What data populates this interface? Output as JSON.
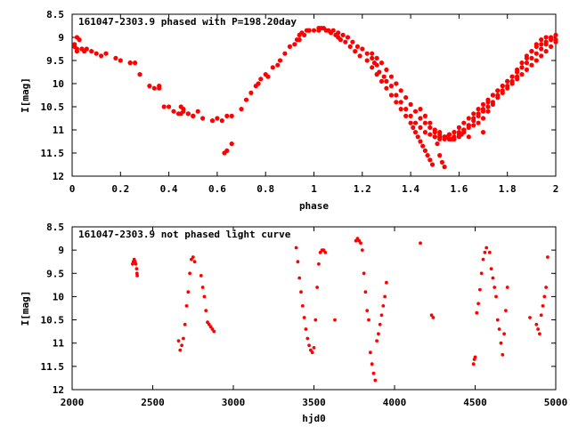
{
  "chart_data": [
    {
      "type": "scatter",
      "title": "161047-2303.9 phased with P=198.20day",
      "xlabel": "phase",
      "ylabel": "I[mag]",
      "xlim": [
        0,
        2
      ],
      "ylim": [
        8.5,
        12
      ],
      "y_inverted": true,
      "grid": false,
      "xticks": [
        "0",
        "0.2",
        "0.4",
        "0.6",
        "0.8",
        "1",
        "1.2",
        "1.4",
        "1.6",
        "1.8",
        "2"
      ],
      "yticks": [
        "8.5",
        "9",
        "9.5",
        "10",
        "10.5",
        "11",
        "11.5",
        "12"
      ],
      "color": "#ff0000",
      "series": [
        {
          "x": [
            0.01,
            0.02,
            0.02,
            0.03,
            0.04,
            0.05,
            0.06,
            0.08,
            0.1,
            0.12,
            0.14,
            0.18,
            0.2,
            0.24,
            0.26,
            0.28,
            0.32,
            0.34,
            0.36,
            0.38,
            0.42,
            0.44,
            0.45,
            0.46,
            0.48,
            0.5,
            0.52,
            0.54,
            0.58,
            0.6,
            0.62,
            0.63,
            0.64,
            0.66,
            0.7,
            0.72,
            0.74,
            0.76,
            0.77,
            0.78,
            0.8,
            0.81,
            0.83,
            0.85,
            0.86,
            0.88,
            0.9,
            0.92,
            0.93,
            0.94,
            0.95,
            0.97,
            0.98,
            1.0,
            1.02,
            1.04,
            1.06,
            1.08,
            1.1,
            1.12,
            1.14,
            1.16,
            1.18,
            1.2,
            1.22,
            1.24,
            1.25,
            1.26,
            1.27,
            1.29,
            1.3,
            1.32,
            1.34,
            1.36,
            1.38,
            1.4,
            1.42,
            1.44,
            1.46,
            1.48,
            1.5,
            1.52,
            1.54,
            1.55,
            1.56,
            1.58,
            1.6,
            1.62,
            1.64,
            1.66,
            1.68,
            1.7,
            1.72,
            1.74,
            1.76,
            1.78,
            1.8,
            1.82,
            1.84,
            1.86,
            1.88,
            1.9,
            1.92,
            1.94,
            1.96,
            1.98,
            2.0,
            1.44,
            1.46,
            1.48,
            1.5,
            1.52,
            1.54,
            1.56,
            1.58,
            1.6,
            1.62,
            1.64,
            1.66,
            1.68,
            1.7,
            1.72,
            1.74,
            1.76,
            1.78,
            1.8,
            1.82,
            1.84,
            1.86,
            1.88,
            1.9,
            1.92,
            1.94,
            1.96,
            1.98,
            1.52,
            1.54,
            1.56,
            1.58,
            1.6,
            1.62,
            1.64,
            1.66,
            1.68,
            1.7,
            1.72,
            1.74,
            1.76,
            1.78,
            1.8,
            1.82,
            1.84,
            1.86,
            1.88,
            1.9,
            1.92,
            1.94,
            1.96,
            1.98,
            2.0,
            1.24,
            1.26,
            1.28,
            1.3,
            1.32,
            1.34,
            1.36,
            1.38,
            1.4,
            1.42,
            1.44,
            1.46,
            1.48,
            1.5,
            1.52,
            1.54,
            1.56,
            1.58,
            1.6,
            1.62,
            1.64,
            1.66,
            1.68,
            1.7,
            1.72,
            1.74,
            1.76,
            1.78,
            1.8,
            1.82,
            1.84,
            1.86,
            1.88,
            1.9,
            1.92,
            1.94,
            1.96,
            1.98,
            2.0,
            0.01,
            0.02,
            0.04,
            0.24,
            0.36,
            0.4,
            0.45,
            0.46,
            0.48,
            0.5,
            0.64,
            0.66,
            0.94,
            0.96,
            0.98,
            1.02,
            1.03,
            1.05,
            1.07,
            1.09,
            1.1,
            1.11,
            1.13,
            1.15,
            1.17,
            1.19,
            1.22,
            1.24,
            1.26,
            1.28,
            1.3,
            1.32,
            1.34,
            1.36,
            1.38,
            1.4,
            1.41,
            1.42,
            1.43,
            1.44,
            1.45,
            1.46,
            1.47,
            1.48,
            1.49,
            1.5,
            1.51,
            1.52,
            1.53,
            1.54,
            1.57,
            1.61,
            1.64,
            1.7
          ],
          "y": [
            9.15,
            9.25,
            9.0,
            9.05,
            9.25,
            9.3,
            9.25,
            9.3,
            9.35,
            9.4,
            9.35,
            9.45,
            9.5,
            9.55,
            9.55,
            9.8,
            10.05,
            10.1,
            10.1,
            10.5,
            10.6,
            10.65,
            10.5,
            10.55,
            10.65,
            10.7,
            10.6,
            10.75,
            10.8,
            10.75,
            10.8,
            11.5,
            11.45,
            11.3,
            10.55,
            10.35,
            10.2,
            10.05,
            10.0,
            9.9,
            9.8,
            9.85,
            9.65,
            9.6,
            9.5,
            9.35,
            9.2,
            9.15,
            9.05,
            8.95,
            8.9,
            8.85,
            8.85,
            8.85,
            8.85,
            8.8,
            8.85,
            8.85,
            8.9,
            8.95,
            9.0,
            9.1,
            9.2,
            9.25,
            9.35,
            9.45,
            9.55,
            9.6,
            9.75,
            9.85,
            9.95,
            10.05,
            10.25,
            10.4,
            10.55,
            10.7,
            10.85,
            10.95,
            11.05,
            11.1,
            11.15,
            11.2,
            11.2,
            11.15,
            11.1,
            11.05,
            11.05,
            11.0,
            10.95,
            10.9,
            10.85,
            10.75,
            10.6,
            10.45,
            10.25,
            10.15,
            10.05,
            9.95,
            9.85,
            9.65,
            9.45,
            9.3,
            9.15,
            9.05,
            9.0,
            9.0,
            9.05,
            10.55,
            10.7,
            10.85,
            11.0,
            11.1,
            11.15,
            11.2,
            11.2,
            11.15,
            11.05,
            10.9,
            10.75,
            10.65,
            10.55,
            10.4,
            10.25,
            10.15,
            10.05,
            9.95,
            9.85,
            9.7,
            9.55,
            9.4,
            9.3,
            9.2,
            9.15,
            9.1,
            9.05,
            11.05,
            11.15,
            11.2,
            11.15,
            11.1,
            11.0,
            10.9,
            10.8,
            10.7,
            10.6,
            10.5,
            10.4,
            10.3,
            10.2,
            10.1,
            10.0,
            9.9,
            9.8,
            9.7,
            9.6,
            9.5,
            9.4,
            9.3,
            9.2,
            9.1,
            9.35,
            9.45,
            9.55,
            9.7,
            9.85,
            10.0,
            10.15,
            10.3,
            10.45,
            10.6,
            10.75,
            10.85,
            10.95,
            11.05,
            11.15,
            11.15,
            11.1,
            11.05,
            10.95,
            10.85,
            10.75,
            10.65,
            10.55,
            10.45,
            10.35,
            10.25,
            10.15,
            10.05,
            9.95,
            9.85,
            9.75,
            9.65,
            9.55,
            9.45,
            9.35,
            9.25,
            9.15,
            9.05,
            8.95,
            9.2,
            9.3,
            9.25,
            9.55,
            10.05,
            10.5,
            10.65,
            10.6,
            10.65,
            10.7,
            10.7,
            10.7,
            9.05,
            8.95,
            8.85,
            8.8,
            8.8,
            8.85,
            8.9,
            8.95,
            9.0,
            9.05,
            9.1,
            9.2,
            9.3,
            9.4,
            9.5,
            9.65,
            9.8,
            9.95,
            10.1,
            10.25,
            10.4,
            10.55,
            10.7,
            10.85,
            10.95,
            11.05,
            11.15,
            11.25,
            11.35,
            11.45,
            11.55,
            11.65,
            11.75,
            11.15,
            11.3,
            11.55,
            11.7,
            11.8,
            11.2,
            11.1,
            11.15,
            11.05
          ]
        }
      ]
    },
    {
      "type": "scatter",
      "title": "161047-2303.9 not phased light curve",
      "xlabel": "hjd0",
      "ylabel": "I[mag]",
      "xlim": [
        2000,
        5000
      ],
      "ylim": [
        8.5,
        12
      ],
      "y_inverted": true,
      "grid": false,
      "xticks": [
        "2000",
        "2500",
        "3000",
        "3500",
        "4000",
        "4500",
        "5000"
      ],
      "yticks": [
        "8.5",
        "9",
        "9.5",
        "10",
        "10.5",
        "11",
        "11.5",
        "12"
      ],
      "color": "#ff0000",
      "series": [
        {
          "x": [
            2375,
            2380,
            2385,
            2390,
            2395,
            2400,
            2402,
            2404,
            2660,
            2670,
            2680,
            2690,
            2700,
            2710,
            2720,
            2730,
            2740,
            2750,
            2760,
            2800,
            2810,
            2820,
            2830,
            2840,
            2850,
            2860,
            2870,
            2880,
            3390,
            3400,
            3410,
            3420,
            3430,
            3440,
            3450,
            3460,
            3470,
            3480,
            3490,
            3500,
            3510,
            3520,
            3530,
            3540,
            3550,
            3560,
            3570,
            3630,
            3760,
            3770,
            3780,
            3790,
            3800,
            3810,
            3820,
            3830,
            3840,
            3850,
            3860,
            3870,
            3880,
            3890,
            3900,
            3910,
            3920,
            3930,
            3940,
            3950,
            4160,
            4230,
            4240,
            4490,
            4495,
            4500,
            4510,
            4520,
            4530,
            4540,
            4550,
            4560,
            4570,
            4590,
            4600,
            4610,
            4620,
            4630,
            4640,
            4650,
            4660,
            4670,
            4680,
            4690,
            4700,
            4840,
            4880,
            4890,
            4900,
            4910,
            4920,
            4930,
            4940,
            4950
          ],
          "y": [
            9.3,
            9.25,
            9.2,
            9.25,
            9.3,
            9.4,
            9.5,
            9.55,
            10.95,
            11.15,
            11.05,
            10.9,
            10.6,
            10.2,
            9.9,
            9.5,
            9.2,
            9.15,
            9.25,
            9.55,
            9.8,
            10.0,
            10.3,
            10.55,
            10.6,
            10.65,
            10.7,
            10.75,
            8.95,
            9.25,
            9.6,
            9.9,
            10.2,
            10.45,
            10.7,
            10.9,
            11.05,
            11.15,
            11.2,
            11.1,
            10.5,
            9.8,
            9.3,
            9.05,
            9.0,
            9.0,
            9.05,
            10.5,
            8.8,
            8.75,
            8.8,
            8.85,
            9.0,
            9.5,
            9.9,
            10.3,
            10.5,
            11.2,
            11.45,
            11.65,
            11.8,
            10.95,
            10.8,
            10.6,
            10.4,
            10.2,
            10.0,
            9.7,
            8.85,
            10.4,
            10.45,
            11.45,
            11.35,
            11.3,
            10.35,
            10.15,
            9.85,
            9.5,
            9.2,
            9.05,
            8.95,
            9.05,
            9.4,
            9.6,
            9.8,
            10.0,
            10.5,
            10.7,
            11.0,
            11.25,
            10.8,
            10.3,
            9.8,
            10.45,
            10.6,
            10.7,
            10.8,
            10.4,
            10.2,
            10.0,
            9.8,
            9.15
          ]
        }
      ]
    }
  ]
}
